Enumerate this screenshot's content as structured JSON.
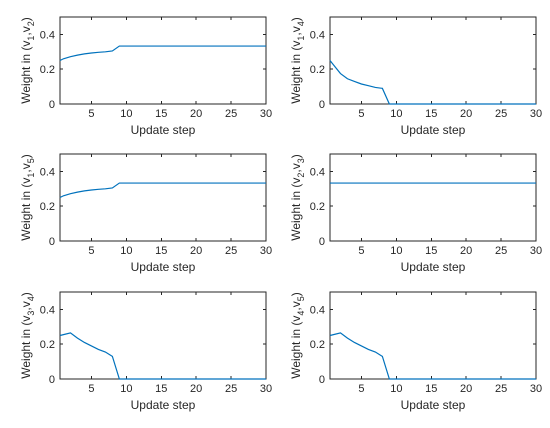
{
  "chart_data": [
    {
      "type": "line",
      "xlabel": "Update step",
      "ylabel": {
        "prefix": "Weight in (v",
        "i": "1",
        "sep": ",v",
        "j": "2",
        "suffix": ")"
      },
      "xlim": [
        0.5,
        30
      ],
      "ylim": [
        0,
        0.5
      ],
      "xticks": [
        5,
        10,
        15,
        20,
        25,
        30
      ],
      "yticks": [
        0,
        0.2,
        0.4
      ],
      "grid": false,
      "color": "#0072BD",
      "series": [
        {
          "x": [
            0.5,
            1,
            2,
            3,
            4,
            5,
            6,
            7,
            8,
            9,
            10,
            15,
            20,
            25,
            30
          ],
          "y": [
            0.25,
            0.26,
            0.272,
            0.281,
            0.288,
            0.293,
            0.297,
            0.3,
            0.305,
            0.333,
            0.333,
            0.333,
            0.333,
            0.333,
            0.333
          ]
        }
      ]
    },
    {
      "type": "line",
      "xlabel": "Update step",
      "ylabel": {
        "prefix": "Weight in (v",
        "i": "1",
        "sep": ",v",
        "j": "4",
        "suffix": ")"
      },
      "xlim": [
        0.5,
        30
      ],
      "ylim": [
        0,
        0.5
      ],
      "xticks": [
        5,
        10,
        15,
        20,
        25,
        30
      ],
      "yticks": [
        0,
        0.2,
        0.4
      ],
      "grid": false,
      "color": "#0072BD",
      "series": [
        {
          "x": [
            0.5,
            1,
            2,
            3,
            4,
            5,
            6,
            7,
            8,
            9,
            10,
            15,
            20,
            25,
            30
          ],
          "y": [
            0.25,
            0.225,
            0.175,
            0.145,
            0.13,
            0.115,
            0.105,
            0.095,
            0.09,
            0,
            0,
            0,
            0,
            0,
            0
          ]
        }
      ]
    },
    {
      "type": "line",
      "xlabel": "Update step",
      "ylabel": {
        "prefix": "Weight in (v",
        "i": "1",
        "sep": ",v",
        "j": "5",
        "suffix": ")"
      },
      "xlim": [
        0.5,
        30
      ],
      "ylim": [
        0,
        0.5
      ],
      "xticks": [
        5,
        10,
        15,
        20,
        25,
        30
      ],
      "yticks": [
        0,
        0.2,
        0.4
      ],
      "grid": false,
      "color": "#0072BD",
      "series": [
        {
          "x": [
            0.5,
            1,
            2,
            3,
            4,
            5,
            6,
            7,
            8,
            9,
            10,
            15,
            20,
            25,
            30
          ],
          "y": [
            0.25,
            0.26,
            0.272,
            0.281,
            0.288,
            0.293,
            0.297,
            0.3,
            0.305,
            0.333,
            0.333,
            0.333,
            0.333,
            0.333,
            0.333
          ]
        }
      ]
    },
    {
      "type": "line",
      "xlabel": "Update step",
      "ylabel": {
        "prefix": "Weight in (v",
        "i": "2",
        "sep": ",v",
        "j": "3",
        "suffix": ")"
      },
      "xlim": [
        0.5,
        30
      ],
      "ylim": [
        0,
        0.5
      ],
      "xticks": [
        5,
        10,
        15,
        20,
        25,
        30
      ],
      "yticks": [
        0,
        0.2,
        0.4
      ],
      "grid": false,
      "color": "#0072BD",
      "series": [
        {
          "x": [
            0.5,
            30
          ],
          "y": [
            0.333,
            0.333
          ]
        }
      ]
    },
    {
      "type": "line",
      "xlabel": "Update step",
      "ylabel": {
        "prefix": "Weight in (v",
        "i": "3",
        "sep": ",v",
        "j": "4",
        "suffix": ")"
      },
      "xlim": [
        0.5,
        30
      ],
      "ylim": [
        0,
        0.5
      ],
      "xticks": [
        5,
        10,
        15,
        20,
        25,
        30
      ],
      "yticks": [
        0,
        0.2,
        0.4
      ],
      "grid": false,
      "color": "#0072BD",
      "series": [
        {
          "x": [
            0.5,
            1,
            2,
            3,
            4,
            5,
            6,
            7,
            8,
            9,
            10,
            15,
            20,
            25,
            30
          ],
          "y": [
            0.25,
            0.255,
            0.265,
            0.235,
            0.21,
            0.19,
            0.17,
            0.155,
            0.13,
            0,
            0,
            0,
            0,
            0,
            0
          ]
        }
      ]
    },
    {
      "type": "line",
      "xlabel": "Update step",
      "ylabel": {
        "prefix": "Weight in (v",
        "i": "4",
        "sep": ",v",
        "j": "5",
        "suffix": ")"
      },
      "xlim": [
        0.5,
        30
      ],
      "ylim": [
        0,
        0.5
      ],
      "xticks": [
        5,
        10,
        15,
        20,
        25,
        30
      ],
      "yticks": [
        0,
        0.2,
        0.4
      ],
      "grid": false,
      "color": "#0072BD",
      "series": [
        {
          "x": [
            0.5,
            1,
            2,
            3,
            4,
            5,
            6,
            7,
            8,
            9,
            10,
            15,
            20,
            25,
            30
          ],
          "y": [
            0.25,
            0.255,
            0.265,
            0.235,
            0.21,
            0.19,
            0.17,
            0.155,
            0.13,
            0,
            0,
            0,
            0,
            0,
            0
          ]
        }
      ]
    }
  ]
}
